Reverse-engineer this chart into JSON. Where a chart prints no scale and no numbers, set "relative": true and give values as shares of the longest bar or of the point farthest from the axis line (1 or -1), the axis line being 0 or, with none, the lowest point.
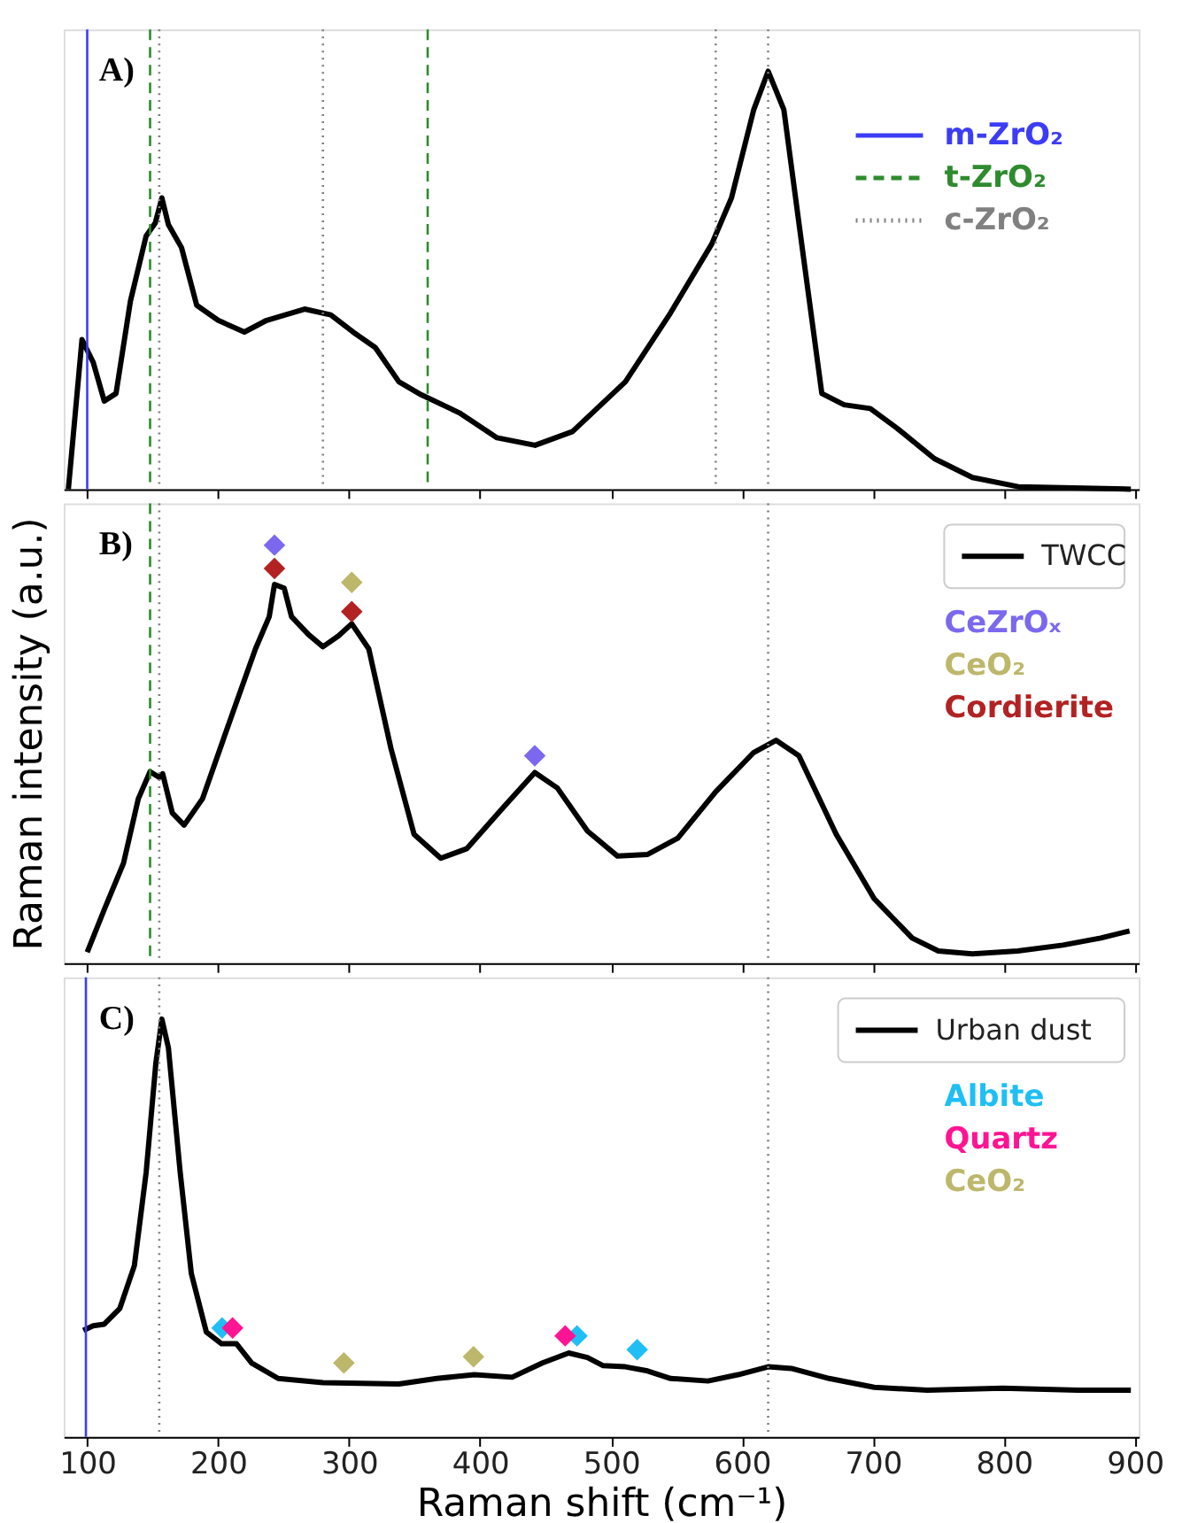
{
  "chart_data": [
    {
      "type": "line",
      "title": "A)",
      "relative": true,
      "xlim": [
        82,
        903
      ],
      "xticks": [
        100,
        200,
        300,
        400,
        500,
        600,
        700,
        800,
        900
      ],
      "tick_labels": false,
      "ref_lines": [
        {
          "axis": "x",
          "value": 100,
          "label": "m-ZrO₂",
          "color": "#3c3cf5",
          "line_style": "solid"
        },
        {
          "axis": "x",
          "value": 148,
          "label": "t-ZrO₂",
          "color": "#2e8b2e",
          "line_style": "dashed"
        },
        {
          "axis": "x",
          "value": 155,
          "label": "c-ZrO₂",
          "color": "#808080",
          "line_style": "dotted"
        },
        {
          "axis": "x",
          "value": 360,
          "color": "#2e8b2e",
          "line_style": "dashed"
        },
        {
          "axis": "x",
          "value": 280,
          "color": "#808080",
          "line_style": "dotted"
        },
        {
          "axis": "x",
          "value": 580,
          "color": "#808080",
          "line_style": "dotted"
        },
        {
          "axis": "x",
          "value": 620,
          "color": "#808080",
          "line_style": "dotted"
        }
      ],
      "series": [
        {
          "color": "#000000",
          "x": [
            85.6,
            96,
            104.6,
            113,
            122,
            133,
            145,
            152,
            157,
            162,
            172,
            183.6,
            200,
            220,
            237,
            266,
            286,
            303,
            320,
            338,
            355,
            384,
            413,
            442,
            470.6,
            511,
            545.5,
            577,
            592,
            609,
            620,
            632,
            646,
            661,
            678,
            698,
            718,
            747,
            776,
            811,
            897
          ],
          "values": [
            0,
            0.358,
            0.303,
            0.211,
            0.229,
            0.45,
            0.606,
            0.637,
            0.697,
            0.633,
            0.578,
            0.44,
            0.404,
            0.376,
            0.404,
            0.431,
            0.417,
            0.376,
            0.339,
            0.257,
            0.226,
            0.183,
            0.123,
            0.105,
            0.138,
            0.257,
            0.422,
            0.587,
            0.697,
            0.908,
            1.0,
            0.908,
            0.578,
            0.229,
            0.202,
            0.193,
            0.147,
            0.073,
            0.028,
            0.006,
            0
          ]
        }
      ]
    },
    {
      "type": "line",
      "title": "B)",
      "ylabel": "Raman intensity (a.u.)",
      "relative": true,
      "xlim": [
        82,
        903
      ],
      "xticks": [
        100,
        200,
        300,
        400,
        500,
        600,
        700,
        800,
        900
      ],
      "tick_labels": false,
      "legend": "top right",
      "ref_lines": [
        {
          "axis": "x",
          "value": 148,
          "color": "#2e8b2e",
          "line_style": "dashed"
        },
        {
          "axis": "x",
          "value": 155,
          "color": "#808080",
          "line_style": "dotted"
        },
        {
          "axis": "x",
          "value": 620,
          "color": "#808080",
          "line_style": "dotted"
        }
      ],
      "series": [
        {
          "name": "TWCC",
          "color": "#000000",
          "x": [
            100,
            113,
            127.7,
            139,
            148,
            155,
            157.6,
            165,
            174,
            188,
            211,
            228.5,
            239,
            243,
            250.4,
            256,
            269,
            280,
            292,
            302,
            315,
            332,
            349.6,
            370,
            390,
            418.7,
            441.8,
            459,
            482,
            505,
            528,
            551,
            580,
            609,
            626,
            643.5,
            672,
            701,
            730,
            750,
            776,
            810.6,
            845,
            874,
            896
          ],
          "values": [
            0.026,
            0.128,
            0.239,
            0.393,
            0.458,
            0.444,
            0.453,
            0.359,
            0.33,
            0.393,
            0.598,
            0.752,
            0.829,
            0.906,
            0.897,
            0.829,
            0.786,
            0.757,
            0.783,
            0.812,
            0.752,
            0.513,
            0.308,
            0.251,
            0.274,
            0.376,
            0.456,
            0.419,
            0.316,
            0.256,
            0.26,
            0.299,
            0.41,
            0.504,
            0.533,
            0.496,
            0.308,
            0.154,
            0.06,
            0.029,
            0.022,
            0.029,
            0.043,
            0.06,
            0.077
          ]
        },
        {
          "type": "scatter",
          "name": "CeZrOₓ",
          "color": "#7b68ee",
          "marker": "diamond",
          "x": [
            243,
            441.8
          ],
          "values": [
            1.0,
            0.496
          ]
        },
        {
          "type": "scatter",
          "name": "CeO₂",
          "color": "#bdb76b",
          "marker": "diamond",
          "x": [
            302
          ],
          "values": [
            0.911
          ]
        },
        {
          "type": "scatter",
          "name": "Cordierite",
          "color": "#b22222",
          "marker": "diamond",
          "x": [
            243,
            302
          ],
          "values": [
            0.944,
            0.841
          ]
        }
      ]
    },
    {
      "type": "line",
      "title": "C)",
      "xlabel": "Raman shift (cm⁻¹)",
      "relative": true,
      "xlim": [
        82,
        903
      ],
      "xticks": [
        100,
        200,
        300,
        400,
        500,
        600,
        700,
        800,
        900
      ],
      "tick_labels": "x",
      "legend": "top right",
      "ref_lines": [
        {
          "axis": "x",
          "value": 99,
          "color": "#3c3cf5",
          "line_style": "solid"
        },
        {
          "axis": "x",
          "value": 155,
          "color": "#808080",
          "line_style": "dotted"
        },
        {
          "axis": "x",
          "value": 620,
          "color": "#808080",
          "line_style": "dotted"
        }
      ],
      "series": [
        {
          "name": "Urban dust",
          "color": "#000000",
          "x": [
            97,
            104.6,
            113,
            124.8,
            136,
            145,
            152.4,
            157,
            162,
            171,
            179.5,
            191,
            202.6,
            214,
            225.6,
            245.8,
            280,
            338,
            367,
            395.7,
            424.5,
            447.6,
            467.7,
            482,
            493.7,
            511,
            528,
            545.5,
            574,
            597,
            620,
            637.7,
            666.6,
            701,
            741.5,
            799,
            856.7,
            897
          ],
          "values": [
            0.255,
            0.266,
            0.27,
            0.307,
            0.41,
            0.633,
            0.894,
            1.0,
            0.931,
            0.633,
            0.391,
            0.251,
            0.223,
            0.223,
            0.177,
            0.14,
            0.13,
            0.127,
            0.14,
            0.149,
            0.143,
            0.177,
            0.201,
            0.19,
            0.171,
            0.168,
            0.158,
            0.14,
            0.134,
            0.149,
            0.168,
            0.164,
            0.14,
            0.119,
            0.112,
            0.117,
            0.112,
            0.112
          ]
        },
        {
          "type": "scatter",
          "name": "Albite",
          "color": "#1fbff5",
          "marker": "diamond",
          "x": [
            203,
            474,
            520
          ],
          "values": [
            0.261,
            0.242,
            0.209
          ]
        },
        {
          "type": "scatter",
          "name": "Quartz",
          "color": "#ff1493",
          "marker": "diamond",
          "x": [
            211,
            465
          ],
          "values": [
            0.261,
            0.242
          ]
        },
        {
          "type": "scatter",
          "name": "CeO₂",
          "color": "#bdb76b",
          "marker": "diamond",
          "x": [
            296,
            395
          ],
          "values": [
            0.177,
            0.192
          ]
        }
      ]
    }
  ]
}
